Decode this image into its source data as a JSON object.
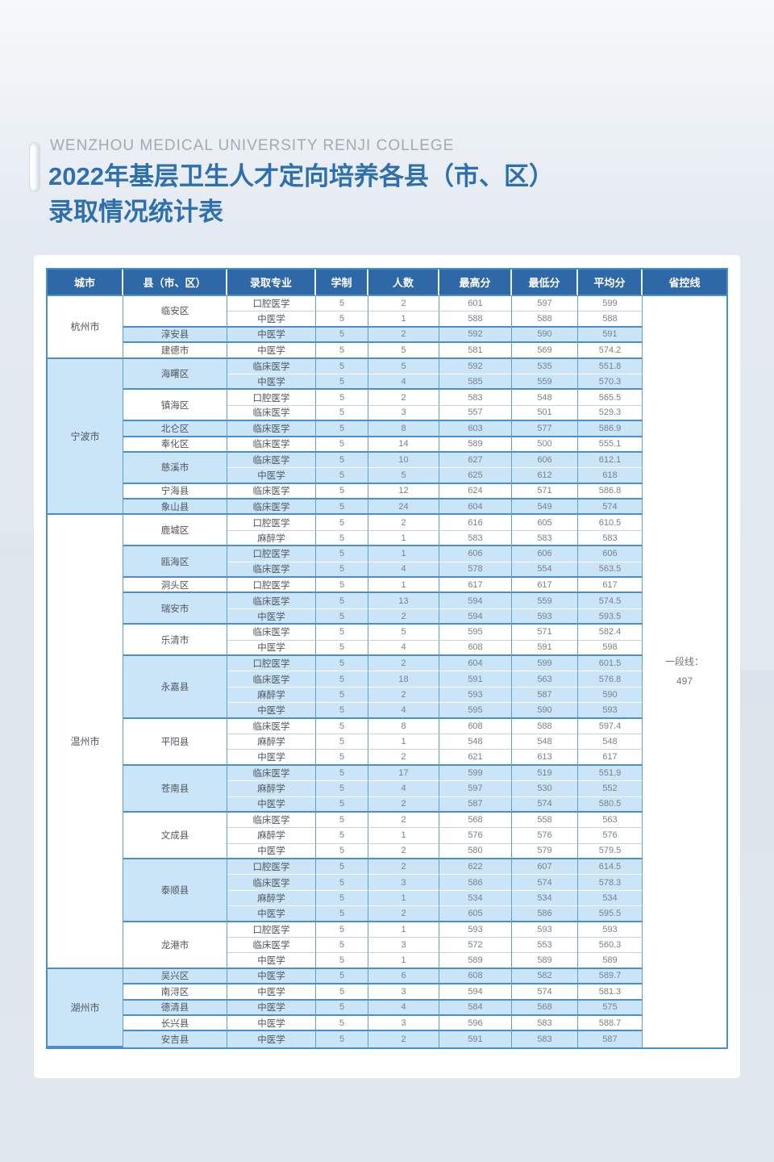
{
  "page": {
    "eyebrow": "WENZHOU MEDICAL UNIVERSITY RENJI COLLEGE",
    "title_line1": "2022年基层卫生人才定向培养各县（市、区）",
    "title_line2": "录取情况统计表"
  },
  "colors": {
    "title_blue": "#2e6fae",
    "table_header_bg": "#2e68a6",
    "stripe_blue": "#cae5f8",
    "table_border": "#4c8ec7",
    "page_background": "#e2e8ef"
  },
  "table": {
    "columns": [
      "城市",
      "县（市、区）",
      "录取专业",
      "学制",
      "人数",
      "最高分",
      "最低分",
      "平均分",
      "省控线"
    ],
    "province_line": {
      "label": "一段线：",
      "value": "497"
    },
    "cities": [
      {
        "name": "杭州市",
        "counties": [
          {
            "name": "临安区",
            "rows": [
              [
                "口腔医学",
                "5",
                "2",
                "601",
                "597",
                "599"
              ],
              [
                "中医学",
                "5",
                "1",
                "588",
                "588",
                "588"
              ]
            ]
          },
          {
            "name": "淳安县",
            "rows": [
              [
                "中医学",
                "5",
                "2",
                "592",
                "590",
                "591"
              ]
            ]
          },
          {
            "name": "建德市",
            "rows": [
              [
                "中医学",
                "5",
                "5",
                "581",
                "569",
                "574.2"
              ]
            ]
          }
        ]
      },
      {
        "name": "宁波市",
        "counties": [
          {
            "name": "海曙区",
            "rows": [
              [
                "临床医学",
                "5",
                "5",
                "592",
                "535",
                "551.8"
              ],
              [
                "中医学",
                "5",
                "4",
                "585",
                "559",
                "570.3"
              ]
            ]
          },
          {
            "name": "镇海区",
            "rows": [
              [
                "口腔医学",
                "5",
                "2",
                "583",
                "548",
                "565.5"
              ],
              [
                "临床医学",
                "5",
                "3",
                "557",
                "501",
                "529.3"
              ]
            ]
          },
          {
            "name": "北仑区",
            "rows": [
              [
                "临床医学",
                "5",
                "8",
                "603",
                "577",
                "586.9"
              ]
            ]
          },
          {
            "name": "奉化区",
            "rows": [
              [
                "临床医学",
                "5",
                "14",
                "589",
                "500",
                "555.1"
              ]
            ]
          },
          {
            "name": "慈溪市",
            "rows": [
              [
                "临床医学",
                "5",
                "10",
                "627",
                "606",
                "612.1"
              ],
              [
                "中医学",
                "5",
                "5",
                "625",
                "612",
                "618"
              ]
            ]
          },
          {
            "name": "宁海县",
            "rows": [
              [
                "临床医学",
                "5",
                "12",
                "624",
                "571",
                "586.8"
              ]
            ]
          },
          {
            "name": "象山县",
            "rows": [
              [
                "临床医学",
                "5",
                "24",
                "604",
                "549",
                "574"
              ]
            ]
          }
        ]
      },
      {
        "name": "温州市",
        "counties": [
          {
            "name": "鹿城区",
            "rows": [
              [
                "口腔医学",
                "5",
                "2",
                "616",
                "605",
                "610.5"
              ],
              [
                "麻醉学",
                "5",
                "1",
                "583",
                "583",
                "583"
              ]
            ]
          },
          {
            "name": "瓯海区",
            "rows": [
              [
                "口腔医学",
                "5",
                "1",
                "606",
                "606",
                "606"
              ],
              [
                "临床医学",
                "5",
                "4",
                "578",
                "554",
                "563.5"
              ]
            ]
          },
          {
            "name": "洞头区",
            "rows": [
              [
                "口腔医学",
                "5",
                "1",
                "617",
                "617",
                "617"
              ]
            ]
          },
          {
            "name": "瑞安市",
            "rows": [
              [
                "临床医学",
                "5",
                "13",
                "594",
                "559",
                "574.5"
              ],
              [
                "中医学",
                "5",
                "2",
                "594",
                "593",
                "593.5"
              ]
            ]
          },
          {
            "name": "乐清市",
            "rows": [
              [
                "临床医学",
                "5",
                "5",
                "595",
                "571",
                "582.4"
              ],
              [
                "中医学",
                "5",
                "4",
                "608",
                "591",
                "598"
              ]
            ]
          },
          {
            "name": "永嘉县",
            "rows": [
              [
                "口腔医学",
                "5",
                "2",
                "604",
                "599",
                "601.5"
              ],
              [
                "临床医学",
                "5",
                "18",
                "591",
                "563",
                "576.8"
              ],
              [
                "麻醉学",
                "5",
                "2",
                "593",
                "587",
                "590"
              ],
              [
                "中医学",
                "5",
                "4",
                "595",
                "590",
                "593"
              ]
            ]
          },
          {
            "name": "平阳县",
            "rows": [
              [
                "临床医学",
                "5",
                "8",
                "608",
                "588",
                "597.4"
              ],
              [
                "麻醉学",
                "5",
                "1",
                "548",
                "548",
                "548"
              ],
              [
                "中医学",
                "5",
                "2",
                "621",
                "613",
                "617"
              ]
            ]
          },
          {
            "name": "苍南县",
            "rows": [
              [
                "临床医学",
                "5",
                "17",
                "599",
                "519",
                "551.9"
              ],
              [
                "麻醉学",
                "5",
                "4",
                "597",
                "530",
                "552"
              ],
              [
                "中医学",
                "5",
                "2",
                "587",
                "574",
                "580.5"
              ]
            ]
          },
          {
            "name": "文成县",
            "rows": [
              [
                "临床医学",
                "5",
                "2",
                "568",
                "558",
                "563"
              ],
              [
                "麻醉学",
                "5",
                "1",
                "576",
                "576",
                "576"
              ],
              [
                "中医学",
                "5",
                "2",
                "580",
                "579",
                "579.5"
              ]
            ]
          },
          {
            "name": "泰顺县",
            "rows": [
              [
                "口腔医学",
                "5",
                "2",
                "622",
                "607",
                "614.5"
              ],
              [
                "临床医学",
                "5",
                "3",
                "586",
                "574",
                "578.3"
              ],
              [
                "麻醉学",
                "5",
                "1",
                "534",
                "534",
                "534"
              ],
              [
                "中医学",
                "5",
                "2",
                "605",
                "586",
                "595.5"
              ]
            ]
          },
          {
            "name": "龙港市",
            "rows": [
              [
                "口腔医学",
                "5",
                "1",
                "593",
                "593",
                "593"
              ],
              [
                "临床医学",
                "5",
                "3",
                "572",
                "553",
                "560.3"
              ],
              [
                "中医学",
                "5",
                "1",
                "589",
                "589",
                "589"
              ]
            ]
          }
        ]
      },
      {
        "name": "湖州市",
        "counties": [
          {
            "name": "吴兴区",
            "rows": [
              [
                "中医学",
                "5",
                "6",
                "608",
                "582",
                "589.7"
              ]
            ]
          },
          {
            "name": "南浔区",
            "rows": [
              [
                "中医学",
                "5",
                "3",
                "594",
                "574",
                "581.3"
              ]
            ]
          },
          {
            "name": "德清县",
            "rows": [
              [
                "中医学",
                "5",
                "4",
                "584",
                "568",
                "575"
              ]
            ]
          },
          {
            "name": "长兴县",
            "rows": [
              [
                "中医学",
                "5",
                "3",
                "596",
                "583",
                "588.7"
              ]
            ]
          },
          {
            "name": "安吉县",
            "rows": [
              [
                "中医学",
                "5",
                "2",
                "591",
                "583",
                "587"
              ]
            ]
          }
        ]
      }
    ]
  }
}
